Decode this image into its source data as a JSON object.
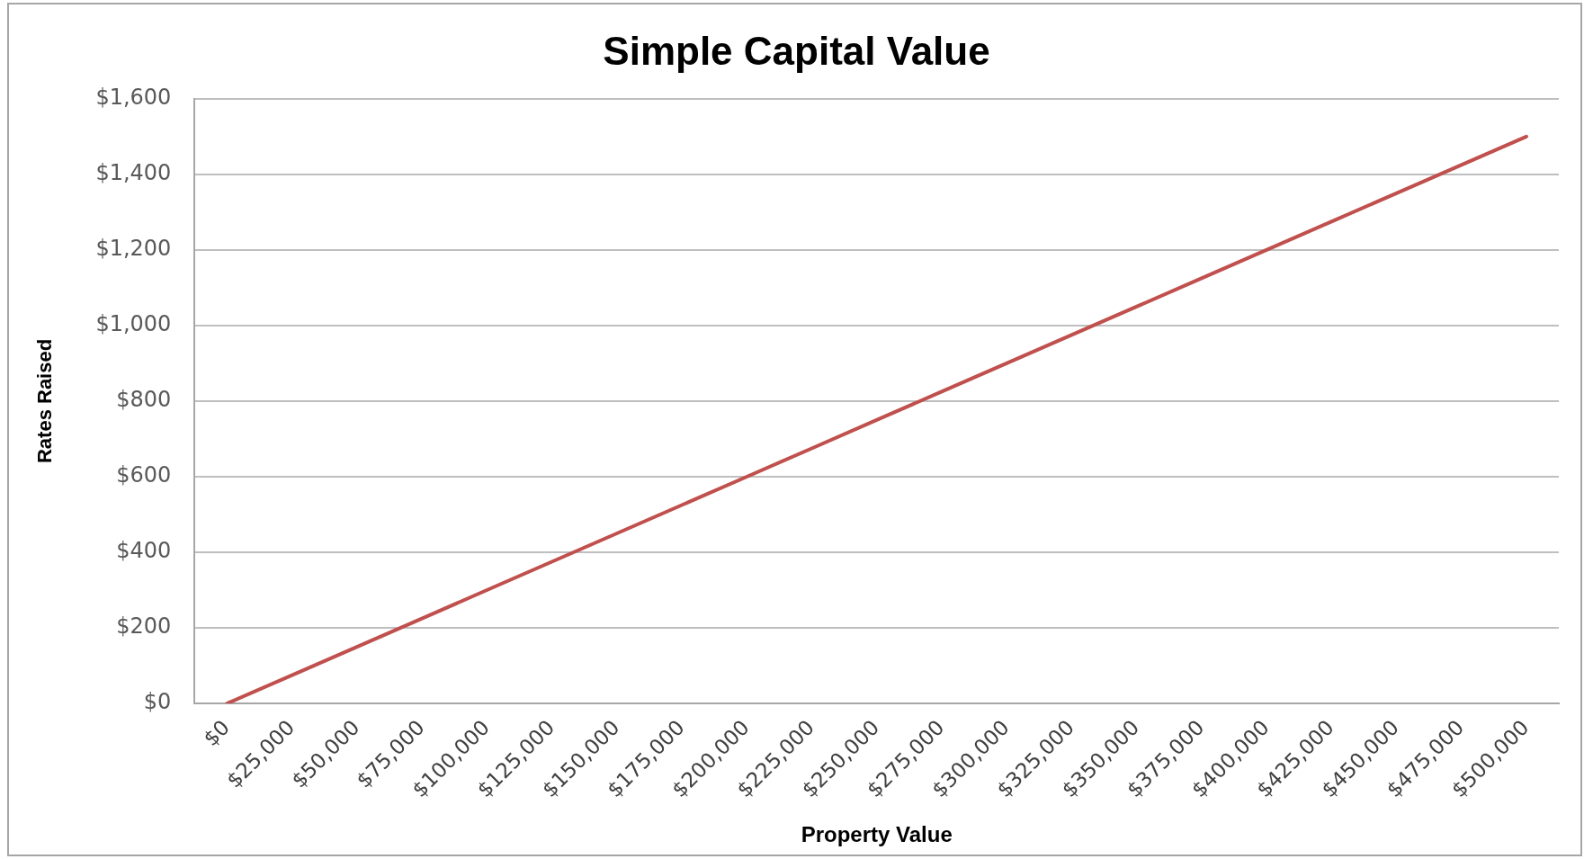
{
  "chart_data": {
    "type": "line",
    "title": "Simple Capital Value",
    "xlabel": "Property Value",
    "ylabel": "Rates Raised",
    "categories": [
      "$0",
      "$25,000",
      "$50,000",
      "$75,000",
      "$100,000",
      "$125,000",
      "$150,000",
      "$175,000",
      "$200,000",
      "$225,000",
      "$250,000",
      "$275,000",
      "$300,000",
      "$325,000",
      "$350,000",
      "$375,000",
      "$400,000",
      "$425,000",
      "$450,000",
      "$475,000",
      "$500,000"
    ],
    "series": [
      {
        "color": "#c0504d",
        "values": [
          0,
          75,
          150,
          225,
          300,
          375,
          450,
          525,
          600,
          675,
          750,
          825,
          900,
          975,
          1050,
          1125,
          1200,
          1275,
          1350,
          1425,
          1500
        ]
      }
    ],
    "ylim": [
      0,
      1600
    ],
    "yticks": [
      {
        "value": 0,
        "label": "$0"
      },
      {
        "value": 200,
        "label": "$200"
      },
      {
        "value": 400,
        "label": "$400"
      },
      {
        "value": 600,
        "label": "$600"
      },
      {
        "value": 800,
        "label": "$800"
      },
      {
        "value": 1000,
        "label": "$1,000"
      },
      {
        "value": 1200,
        "label": "$1,200"
      },
      {
        "value": 1400,
        "label": "$1,400"
      },
      {
        "value": 1600,
        "label": "$1,600"
      }
    ],
    "grid": "y",
    "line_style": "solid"
  }
}
